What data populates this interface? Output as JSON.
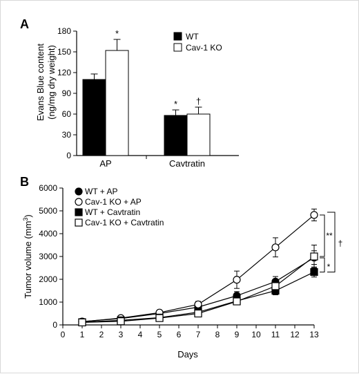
{
  "colors": {
    "wt": "#000000",
    "ko": "#ffffff",
    "stroke": "#000000"
  },
  "chart_data": [
    {
      "panel_label": "A",
      "type": "bar",
      "categories": [
        "AP",
        "Cavtratin"
      ],
      "ylabel": "Evans Blue content",
      "ylabel_units": "(ng/mg dry weight)",
      "ylim": [
        0,
        180
      ],
      "yticks": [
        "0",
        "30",
        "60",
        "90",
        "120",
        "150",
        "180"
      ],
      "grid": false,
      "legend_position": "top-right",
      "series": [
        {
          "name": "WT",
          "values": [
            110,
            58
          ],
          "errors": [
            8,
            8
          ],
          "marks": [
            "",
            "*"
          ]
        },
        {
          "name": "Cav-1 KO",
          "values": [
            152,
            60
          ],
          "errors": [
            16,
            10
          ],
          "marks": [
            "*",
            "†"
          ]
        }
      ]
    },
    {
      "panel_label": "B",
      "type": "line",
      "xlabel": "Days",
      "ylabel": "Tumor volume (mm",
      "ylabel_sup": "3",
      "ylabel_close": ")",
      "xlim": [
        0,
        13
      ],
      "ylim": [
        0,
        6000
      ],
      "xticks": [
        "0",
        "1",
        "2",
        "3",
        "4",
        "5",
        "6",
        "7",
        "8",
        "9",
        "10",
        "11",
        "12",
        "13"
      ],
      "yticks": [
        "0",
        "1000",
        "2000",
        "3000",
        "4000",
        "5000",
        "6000"
      ],
      "grid": false,
      "legend_position": "top-left",
      "x": [
        1,
        3,
        5,
        7,
        9,
        11,
        13
      ],
      "series": [
        {
          "name": "WT + AP",
          "marker": "circle",
          "filled": true,
          "values": [
            150,
            280,
            500,
            780,
            1280,
            1900,
            2950
          ],
          "errors": [
            40,
            50,
            70,
            110,
            180,
            220,
            300
          ]
        },
        {
          "name": "Cav-1 KO + AP",
          "marker": "circle",
          "filled": false,
          "values": [
            140,
            300,
            540,
            900,
            1980,
            3400,
            4820
          ],
          "errors": [
            40,
            60,
            80,
            130,
            380,
            420,
            260
          ]
        },
        {
          "name": "WT + Cavtratin",
          "marker": "square",
          "filled": true,
          "values": [
            120,
            200,
            320,
            560,
            1050,
            1500,
            2320
          ],
          "errors": [
            30,
            40,
            60,
            90,
            150,
            180,
            220
          ]
        },
        {
          "name": "Cav-1 KO + Cavtratin",
          "marker": "square",
          "filled": false,
          "values": [
            110,
            160,
            300,
            500,
            1030,
            1700,
            3000
          ],
          "errors": [
            30,
            40,
            60,
            90,
            150,
            250,
            500
          ]
        }
      ],
      "significance": [
        "**",
        "*",
        "†"
      ]
    }
  ]
}
